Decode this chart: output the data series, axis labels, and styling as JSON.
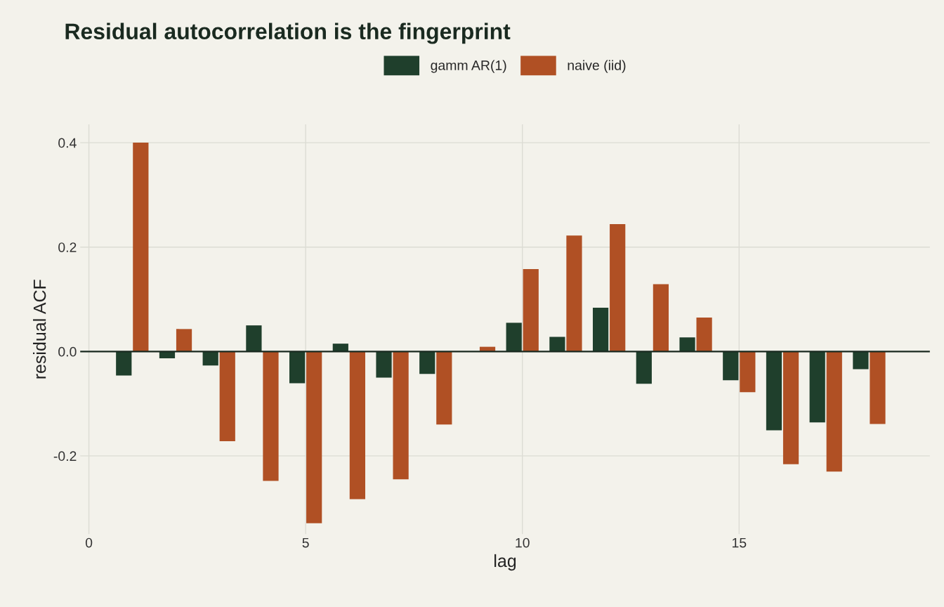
{
  "chart_data": {
    "type": "bar",
    "title": "Residual autocorrelation is the fingerprint",
    "xlabel": "lag",
    "ylabel": "residual ACF",
    "x": [
      1,
      2,
      3,
      4,
      5,
      6,
      7,
      8,
      9,
      10,
      11,
      12,
      13,
      14,
      15,
      16,
      17,
      18
    ],
    "series": [
      {
        "name": "gamm AR(1)",
        "color": "#1f3f2c",
        "values": [
          -0.046,
          -0.013,
          -0.027,
          0.05,
          -0.061,
          0.015,
          -0.05,
          -0.043,
          null,
          0.055,
          0.028,
          0.084,
          -0.062,
          0.027,
          -0.055,
          -0.151,
          -0.136,
          -0.034
        ]
      },
      {
        "name": "naive (iid)",
        "color": "#b05024",
        "values": [
          0.4,
          0.043,
          -0.172,
          -0.248,
          -0.329,
          -0.283,
          -0.245,
          -0.14,
          0.009,
          0.158,
          0.222,
          0.244,
          0.129,
          0.065,
          -0.078,
          -0.216,
          -0.23,
          -0.139
        ]
      }
    ],
    "xlim": [
      -0.2,
      19.4
    ],
    "ylim": [
      -0.35,
      0.435
    ],
    "xticks": [
      0,
      5,
      10,
      15
    ],
    "yticks": [
      {
        "value": -0.2,
        "label": "-0.2"
      },
      {
        "value": 0,
        "label": "0.0"
      },
      {
        "value": 0.2,
        "label": "0.2"
      },
      {
        "value": 0.4,
        "label": "0.4"
      }
    ],
    "ref_lines": [
      {
        "axis": "y",
        "value": 0,
        "color": "#1a2a20"
      }
    ],
    "grid": true,
    "legend": "top"
  }
}
